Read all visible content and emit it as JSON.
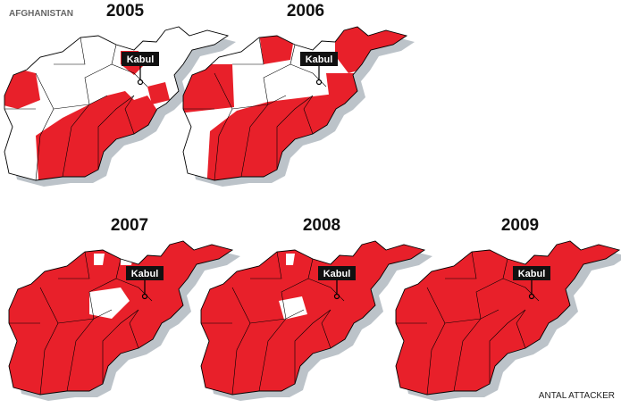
{
  "header": {
    "country": "AFGHANISTAN"
  },
  "maps": [
    {
      "year": "2005",
      "capital": "Kabul"
    },
    {
      "year": "2006",
      "capital": "Kabul"
    },
    {
      "year": "2007",
      "capital": "Kabul"
    },
    {
      "year": "2008",
      "capital": "Kabul"
    },
    {
      "year": "2009",
      "capital": "Kabul"
    }
  ],
  "footer": {
    "caption": "ANTAL ATTACKER"
  }
}
